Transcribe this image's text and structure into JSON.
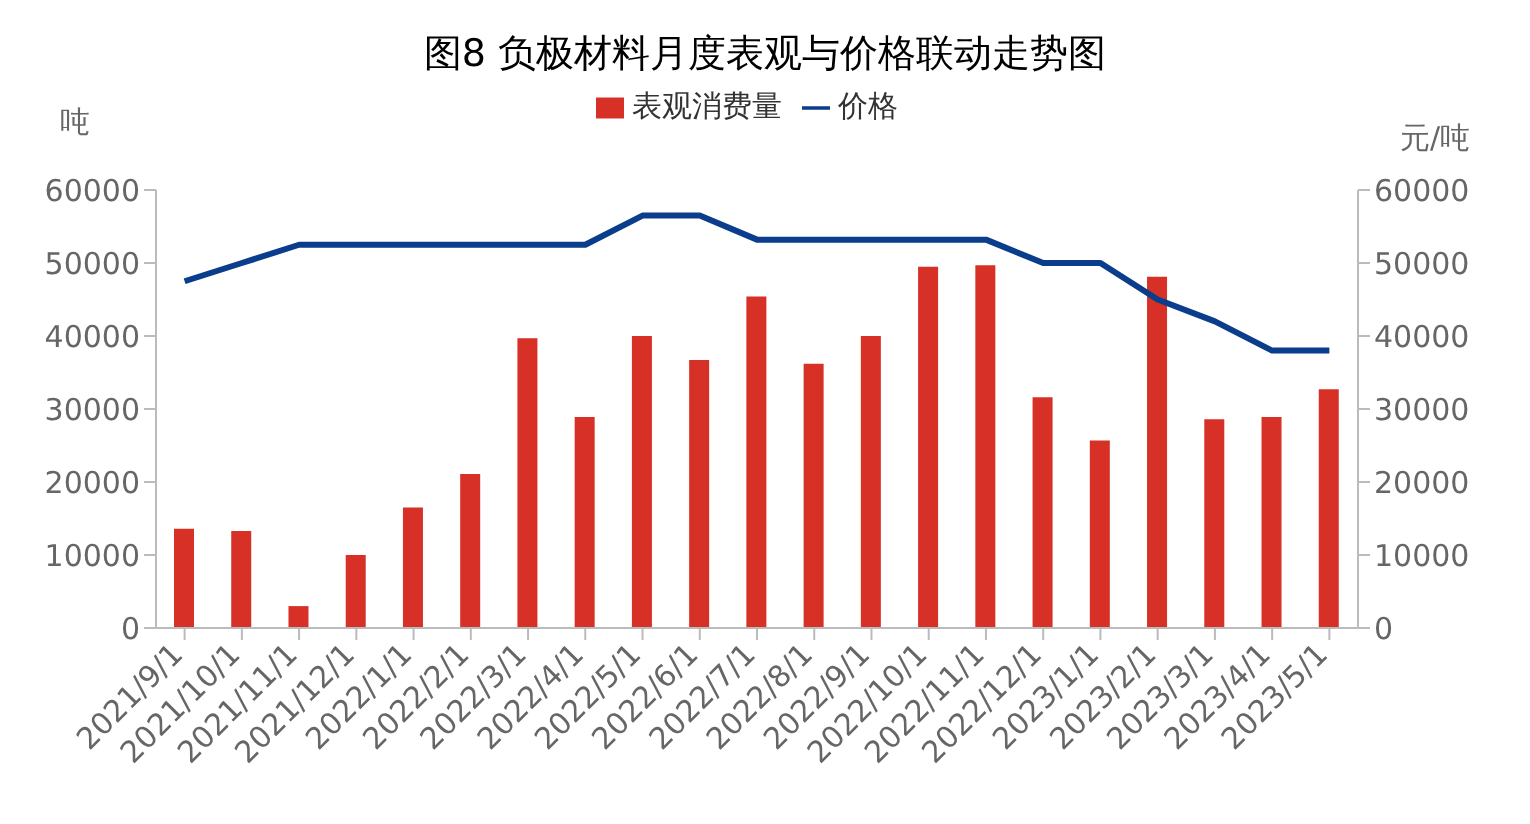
{
  "chart_data": {
    "type": "bar",
    "title": "图8 负极材料月度表观与价格联动走势图",
    "ylabel": "吨",
    "y2label": "元/吨",
    "categories": [
      "2021/9/1",
      "2021/10/1",
      "2021/11/1",
      "2021/12/1",
      "2022/1/1",
      "2022/2/1",
      "2022/3/1",
      "2022/4/1",
      "2022/5/1",
      "2022/6/1",
      "2022/7/1",
      "2022/8/1",
      "2022/9/1",
      "2022/10/1",
      "2022/11/1",
      "2022/12/1",
      "2023/1/1",
      "2023/2/1",
      "2023/3/1",
      "2023/4/1",
      "2023/5/1"
    ],
    "series": [
      {
        "name": "表观消费量",
        "color": "#d63027",
        "values": [
          13600,
          13300,
          3000,
          10000,
          16500,
          21100,
          39700,
          28900,
          40000,
          36700,
          45400,
          36200,
          40000,
          49500,
          49700,
          31600,
          25700,
          48100,
          28600,
          28900,
          32700
        ]
      },
      {
        "name": "价格",
        "type": "line",
        "axis": "y2",
        "color": "#0a3d8c",
        "values": [
          47500,
          50000,
          52500,
          52500,
          52500,
          52500,
          52500,
          52500,
          56500,
          56500,
          53200,
          53200,
          53200,
          53200,
          53200,
          50000,
          50000,
          45000,
          42000,
          38000,
          38000
        ]
      }
    ],
    "ylim": [
      0,
      60000
    ],
    "yticks": [
      0,
      10000,
      20000,
      30000,
      40000,
      50000,
      60000
    ],
    "y2lim": [
      0,
      60000
    ],
    "y2ticks": [
      0,
      10000,
      20000,
      30000,
      40000,
      50000,
      60000
    ],
    "grid": false,
    "legend": "top",
    "marker": "none",
    "line_style": "solid"
  }
}
